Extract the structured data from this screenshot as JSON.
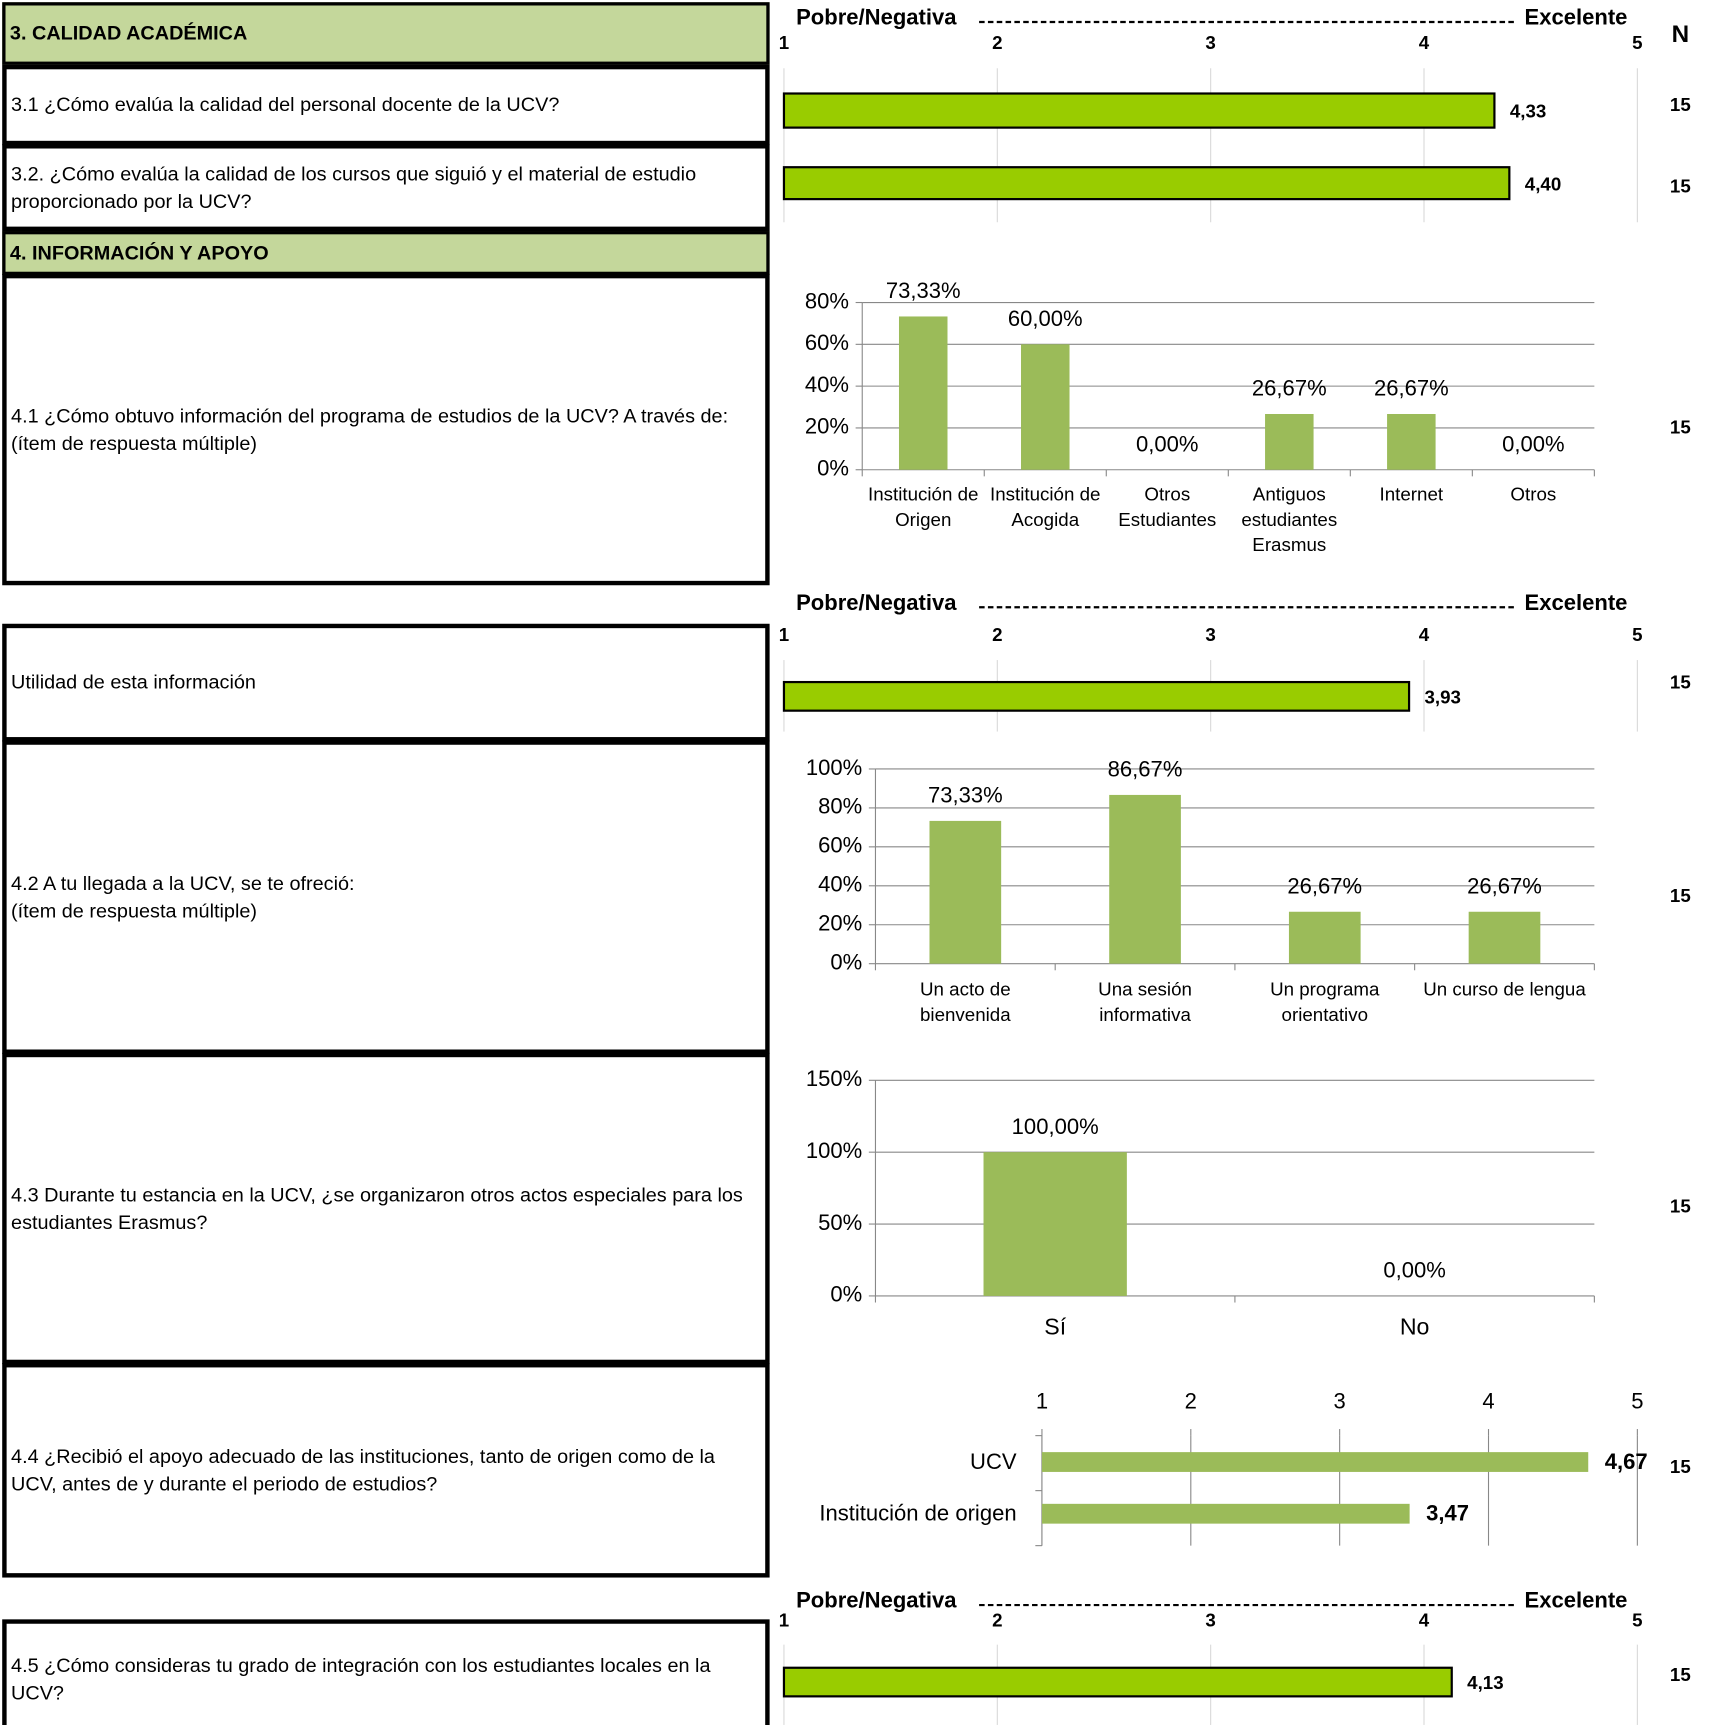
{
  "header": {
    "section": "3. CALIDAD ACADÉMICA",
    "n_label": "N"
  },
  "section4": "4. INFORMACIÓN Y APOYO",
  "questions": [
    "3.1 ¿Cómo evalúa la calidad del personal docente de la UCV?",
    "3.2. ¿Cómo evalúa la calidad de los cursos que siguió y el material de estudio proporcionado por la UCV?",
    "4.1 ¿Cómo obtuvo información del programa de estudios de la UCV? A través de:\n(ítem de respuesta múltiple)",
    "Utilidad de esta información",
    "4.2 A tu llegada a la UCV, se te ofreció:\n(ítem de respuesta múltiple)",
    "4.3 Durante tu estancia en la UCV, ¿se organizaron otros actos especiales para los estudiantes Erasmus?",
    "4.4 ¿Recibió el apoyo adecuado de las instituciones, tanto de origen como de la UCV, antes de y durante el periodo de estudios?",
    "4.5 ¿Cómo consideras tu grado de integración con los estudiantes locales en la UCV?"
  ],
  "n": [
    15,
    15,
    15,
    15,
    15,
    15,
    15,
    15
  ],
  "chart_data": [
    {
      "type": "scale_bar",
      "left_label": "Pobre/Negativa",
      "right_label": "Excelente",
      "xlim": [
        1,
        5
      ],
      "xticks": [
        1,
        2,
        3,
        4,
        5
      ],
      "values": [
        4.33,
        4.4
      ],
      "value_labels": [
        "4,33",
        "4,40"
      ],
      "color": "#99cc00"
    },
    {
      "type": "scale_bar",
      "left_label": "Pobre/Negativa",
      "right_label": "Excelente",
      "xlim": [
        1,
        5
      ],
      "xticks": [
        1,
        2,
        3,
        4,
        5
      ],
      "values": [
        3.93
      ],
      "value_labels": [
        "3,93"
      ],
      "color": "#99cc00"
    },
    {
      "type": "bar",
      "categories": [
        "Institución de Origen",
        "Institución de Acogida",
        "Otros Estudiantes",
        "Antiguos estudiantes Erasmus",
        "Internet",
        "Otros"
      ],
      "values": [
        73.33,
        60.0,
        0.0,
        26.67,
        26.67,
        0.0
      ],
      "value_labels": [
        "73,33%",
        "60,00%",
        "0,00%",
        "26,67%",
        "26,67%",
        "0,00%"
      ],
      "ylim": [
        0,
        80
      ],
      "yticks": [
        {
          "value": 0,
          "label": "0%"
        },
        {
          "value": 20,
          "label": "20%"
        },
        {
          "value": 40,
          "label": "40%"
        },
        {
          "value": 60,
          "label": "60%"
        },
        {
          "value": 80,
          "label": "80%"
        }
      ],
      "color": "#9bbb59",
      "grid": true
    },
    {
      "type": "bar",
      "categories": [
        "Un acto de bienvenida",
        "Una sesión informativa",
        "Un programa orientativo",
        "Un curso de lengua"
      ],
      "values": [
        73.33,
        86.67,
        26.67,
        26.67
      ],
      "value_labels": [
        "73,33%",
        "86,67%",
        "26,67%",
        "26,67%"
      ],
      "ylim": [
        0,
        100
      ],
      "yticks": [
        {
          "value": 0,
          "label": "0%"
        },
        {
          "value": 20,
          "label": "20%"
        },
        {
          "value": 40,
          "label": "40%"
        },
        {
          "value": 60,
          "label": "60%"
        },
        {
          "value": 80,
          "label": "80%"
        },
        {
          "value": 100,
          "label": "100%"
        }
      ],
      "color": "#9bbb59",
      "grid": true
    },
    {
      "type": "bar",
      "categories": [
        "Sí",
        "No"
      ],
      "values": [
        100.0,
        0.0
      ],
      "value_labels": [
        "100,00%",
        "0,00%"
      ],
      "ylim": [
        0,
        150
      ],
      "yticks": [
        {
          "value": 0,
          "label": "0%"
        },
        {
          "value": 50,
          "label": "50%"
        },
        {
          "value": 100,
          "label": "100%"
        },
        {
          "value": 150,
          "label": "150%"
        }
      ],
      "color": "#9bbb59",
      "grid": true
    },
    {
      "type": "barh",
      "categories": [
        "UCV",
        "Institución de origen"
      ],
      "values": [
        4.67,
        3.47
      ],
      "value_labels": [
        "4,67",
        "3,47"
      ],
      "xlim": [
        1,
        5
      ],
      "xticks": [
        1,
        2,
        3,
        4,
        5
      ],
      "color": "#9bbb59",
      "grid": true
    },
    {
      "type": "scale_bar",
      "left_label": "Pobre/Negativa",
      "right_label": "Excelente",
      "xlim": [
        1,
        5
      ],
      "xticks": [
        1,
        2,
        3,
        4,
        5
      ],
      "values": [
        4.13
      ],
      "value_labels": [
        "4,13"
      ],
      "color": "#99cc00"
    }
  ]
}
